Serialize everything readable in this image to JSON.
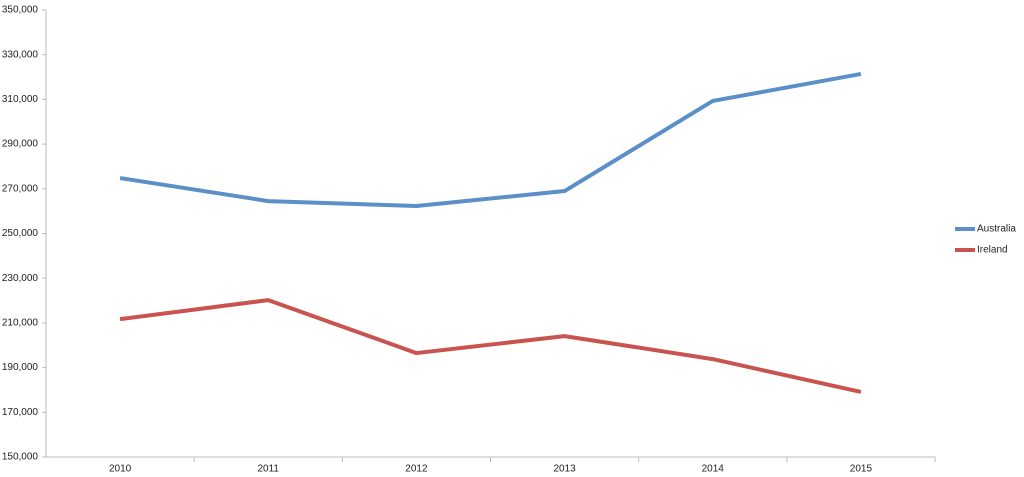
{
  "chart_data": {
    "type": "line",
    "categories": [
      "2010",
      "2011",
      "2012",
      "2013",
      "2014",
      "2015"
    ],
    "series": [
      {
        "name": "Australia",
        "color": "#5b8fc7",
        "values": [
          274800,
          264500,
          262300,
          269000,
          309300,
          321400
        ]
      },
      {
        "name": "Ireland",
        "color": "#c9534f",
        "values": [
          211700,
          220200,
          196500,
          204100,
          193800,
          179100
        ]
      }
    ],
    "ylim": [
      150000,
      350000
    ],
    "yticks": [
      {
        "value": 150000,
        "label": "150,000"
      },
      {
        "value": 170000,
        "label": "170,000"
      },
      {
        "value": 190000,
        "label": "190,000"
      },
      {
        "value": 210000,
        "label": "210,000"
      },
      {
        "value": 230000,
        "label": "230,000"
      },
      {
        "value": 250000,
        "label": "250,000"
      },
      {
        "value": 270000,
        "label": "270,000"
      },
      {
        "value": 290000,
        "label": "290,000"
      },
      {
        "value": 310000,
        "label": "310,000"
      },
      {
        "value": 330000,
        "label": "330,000"
      },
      {
        "value": 350000,
        "label": "350,000"
      }
    ],
    "grid": false,
    "legend": "right"
  }
}
